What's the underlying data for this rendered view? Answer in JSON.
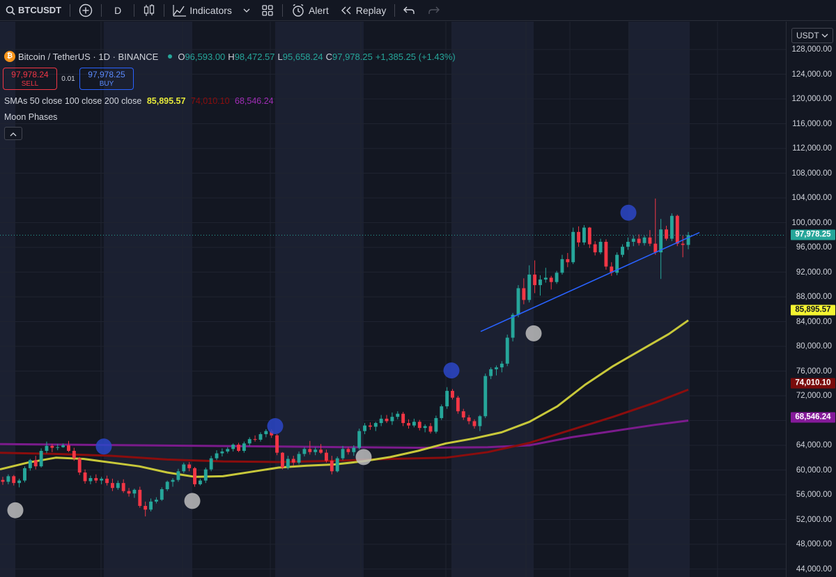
{
  "toolbar": {
    "symbol": "BTCUSDT",
    "interval": "D",
    "indicators_label": "Indicators",
    "alert_label": "Alert",
    "replay_label": "Replay"
  },
  "legend": {
    "title": "Bitcoin / TetherUS · 1D · BINANCE",
    "coin_glyph": "₿",
    "open_k": "O",
    "open_v": "96,593.00",
    "high_k": "H",
    "high_v": "98,472.57",
    "low_k": "L",
    "low_v": "95,658.24",
    "close_k": "C",
    "close_v": "97,978.25",
    "change": "+1,385.25 (+1.43%)"
  },
  "trade": {
    "sell_price": "97,978.24",
    "sell_label": "SELL",
    "spread": "0.01",
    "buy_price": "97,978.25",
    "buy_label": "BUY"
  },
  "indicators": {
    "sma_name": "SMAs 50 close 100 close 200 close",
    "sma50_value": "85,895.57",
    "sma100_value": "74,010.10",
    "sma200_value": "68,546.24",
    "moon_name": "Moon Phases"
  },
  "price_axis": {
    "currency": "USDT",
    "ticks": [
      "128,000.00",
      "124,000.00",
      "120,000.00",
      "116,000.00",
      "112,000.00",
      "108,000.00",
      "104,000.00",
      "100,000.00",
      "96,000.00",
      "92,000.00",
      "88,000.00",
      "84,000.00",
      "80,000.00",
      "76,000.00",
      "72,000.00",
      "64,000.00",
      "60,000.00",
      "56,000.00",
      "52,000.00",
      "48,000.00",
      "44,000.00"
    ],
    "last_price_tag": "97,978.25",
    "sma50_tag": "85,895.57",
    "sma100_tag": "74,010.10",
    "sma200_tag": "68,546.24"
  },
  "colors": {
    "background": "#131722",
    "up": "#26a69a",
    "down": "#f23645",
    "sma50": "#c8c83a",
    "sma100": "#8b0d0d",
    "sma200": "#7b1b8c",
    "trendline": "#2962ff",
    "full_moon": "#bdbdbd",
    "new_moon": "#2b46c8",
    "phase_shade": "#1b2031"
  },
  "icons": [
    "search-icon",
    "add-symbol-icon",
    "candles-icon",
    "indicators-icon",
    "templates-icon",
    "alert-icon",
    "replay-icon",
    "undo-icon",
    "redo-icon",
    "bitcoin-icon",
    "chevron-up-icon",
    "tradingview-logo"
  ],
  "chart_data": {
    "type": "candlestick",
    "symbol": "Bitcoin / TetherUS",
    "interval": "1D",
    "exchange": "BINANCE",
    "ylim": [
      44000,
      128000
    ],
    "candles": [
      [
        58400,
        58900,
        57600,
        58100
      ],
      [
        58100,
        59300,
        57700,
        59000
      ],
      [
        59000,
        59200,
        57500,
        57900
      ],
      [
        57900,
        58600,
        57200,
        58300
      ],
      [
        58300,
        60600,
        58000,
        60300
      ],
      [
        60300,
        61800,
        59900,
        61600
      ],
      [
        61600,
        62300,
        60100,
        60600
      ],
      [
        60600,
        63500,
        60400,
        63100
      ],
      [
        63100,
        64600,
        62700,
        63900
      ],
      [
        63900,
        64200,
        62900,
        63600
      ],
      [
        63600,
        64200,
        63200,
        63700
      ],
      [
        63700,
        64300,
        63600,
        64000
      ],
      [
        64000,
        64700,
        62900,
        63100
      ],
      [
        63100,
        63600,
        61500,
        61900
      ],
      [
        61900,
        62100,
        59200,
        59600
      ],
      [
        59600,
        60100,
        57800,
        58200
      ],
      [
        58200,
        59100,
        57700,
        58700
      ],
      [
        58700,
        59300,
        57900,
        58300
      ],
      [
        58300,
        58900,
        57700,
        58600
      ],
      [
        58600,
        59100,
        57500,
        57900
      ],
      [
        57900,
        58600,
        56600,
        57100
      ],
      [
        57100,
        58300,
        56800,
        57900
      ],
      [
        57900,
        58500,
        56300,
        56600
      ],
      [
        56600,
        57100,
        55700,
        56200
      ],
      [
        56200,
        57000,
        55500,
        56800
      ],
      [
        56800,
        57300,
        53900,
        54200
      ],
      [
        54200,
        54900,
        52500,
        53600
      ],
      [
        53600,
        55400,
        53300,
        54900
      ],
      [
        54900,
        55600,
        54600,
        55200
      ],
      [
        55200,
        57200,
        55000,
        56900
      ],
      [
        56900,
        58300,
        56600,
        58100
      ],
      [
        58100,
        58700,
        57300,
        58400
      ],
      [
        58400,
        60200,
        58100,
        59800
      ],
      [
        59800,
        61200,
        59500,
        60900
      ],
      [
        60900,
        61300,
        59800,
        60300
      ],
      [
        60300,
        60500,
        57300,
        57700
      ],
      [
        57700,
        58600,
        57500,
        58300
      ],
      [
        58300,
        60400,
        57900,
        60100
      ],
      [
        60100,
        62300,
        59800,
        61900
      ],
      [
        61900,
        63200,
        61600,
        62700
      ],
      [
        62700,
        63500,
        62200,
        63000
      ],
      [
        63000,
        63700,
        62700,
        63400
      ],
      [
        63400,
        64300,
        63000,
        64100
      ],
      [
        64100,
        64400,
        62900,
        63100
      ],
      [
        63100,
        64600,
        62800,
        64300
      ],
      [
        64300,
        65300,
        63900,
        65000
      ],
      [
        65000,
        65600,
        64600,
        64900
      ],
      [
        64900,
        66100,
        64600,
        65800
      ],
      [
        65800,
        66600,
        65300,
        66300
      ],
      [
        66300,
        66600,
        65200,
        65600
      ],
      [
        65600,
        65800,
        62400,
        62800
      ],
      [
        62800,
        62900,
        60100,
        60400
      ],
      [
        60400,
        62300,
        60100,
        61800
      ],
      [
        61800,
        62300,
        60700,
        61200
      ],
      [
        61200,
        63000,
        60900,
        62600
      ],
      [
        62600,
        63700,
        62200,
        63400
      ],
      [
        63400,
        64700,
        62500,
        62900
      ],
      [
        62900,
        63700,
        62400,
        63300
      ],
      [
        63300,
        64200,
        62600,
        62800
      ],
      [
        62800,
        63300,
        61200,
        61500
      ],
      [
        61500,
        62300,
        59300,
        59800
      ],
      [
        59800,
        62200,
        59600,
        61900
      ],
      [
        61900,
        63900,
        61600,
        63400
      ],
      [
        63400,
        63700,
        62500,
        62900
      ],
      [
        62900,
        64000,
        62300,
        63600
      ],
      [
        63600,
        66700,
        63300,
        66300
      ],
      [
        66300,
        67600,
        65800,
        67200
      ],
      [
        67200,
        67700,
        66500,
        67000
      ],
      [
        67000,
        67800,
        66300,
        67600
      ],
      [
        67600,
        68900,
        67100,
        68300
      ],
      [
        68300,
        68900,
        67600,
        67900
      ],
      [
        67900,
        69300,
        67300,
        68600
      ],
      [
        68600,
        69500,
        68200,
        69100
      ],
      [
        69100,
        69400,
        67100,
        67600
      ],
      [
        67600,
        68200,
        66700,
        67200
      ],
      [
        67200,
        68300,
        66900,
        67800
      ],
      [
        67800,
        68100,
        66400,
        66800
      ],
      [
        66800,
        67400,
        66100,
        67100
      ],
      [
        67100,
        67600,
        65900,
        66200
      ],
      [
        66200,
        68800,
        65900,
        68400
      ],
      [
        68400,
        70600,
        68100,
        70300
      ],
      [
        70300,
        73400,
        69900,
        72800
      ],
      [
        72800,
        73100,
        71400,
        71700
      ],
      [
        71700,
        72000,
        69100,
        69500
      ],
      [
        69500,
        69900,
        68100,
        68500
      ],
      [
        68500,
        68900,
        67400,
        67900
      ],
      [
        67900,
        68200,
        66700,
        67100
      ],
      [
        67100,
        68900,
        66300,
        68700
      ],
      [
        68700,
        75600,
        68400,
        75200
      ],
      [
        75200,
        76600,
        74700,
        76300
      ],
      [
        76300,
        76900,
        75300,
        76600
      ],
      [
        76600,
        77600,
        75800,
        77200
      ],
      [
        77200,
        81900,
        76800,
        81400
      ],
      [
        81400,
        85400,
        80800,
        85100
      ],
      [
        85100,
        89900,
        84700,
        89400
      ],
      [
        89400,
        91000,
        86800,
        87500
      ],
      [
        87500,
        93100,
        87100,
        91600
      ],
      [
        91600,
        93900,
        88600,
        89900
      ],
      [
        89900,
        91500,
        88200,
        90800
      ],
      [
        90800,
        92700,
        90300,
        91100
      ],
      [
        91100,
        91400,
        89200,
        90400
      ],
      [
        90400,
        92200,
        90100,
        91900
      ],
      [
        91900,
        94800,
        91600,
        94100
      ],
      [
        94100,
        95100,
        92800,
        93600
      ],
      [
        93600,
        99200,
        93300,
        98500
      ],
      [
        98500,
        99400,
        96100,
        96800
      ],
      [
        96800,
        99600,
        96400,
        99200
      ],
      [
        99200,
        99300,
        95900,
        96500
      ],
      [
        96500,
        97000,
        94700,
        95200
      ],
      [
        95200,
        97400,
        94900,
        96900
      ],
      [
        96900,
        97300,
        92400,
        92900
      ],
      [
        92900,
        93600,
        91400,
        91900
      ],
      [
        91900,
        95200,
        91500,
        94800
      ],
      [
        94800,
        96500,
        94400,
        96100
      ],
      [
        96100,
        97600,
        95600,
        96900
      ],
      [
        96900,
        97900,
        96200,
        97400
      ],
      [
        97400,
        98100,
        96300,
        96700
      ],
      [
        96700,
        97900,
        96300,
        97600
      ],
      [
        97600,
        98800,
        96200,
        96600
      ],
      [
        96600,
        103900,
        94800,
        95200
      ],
      [
        95200,
        100600,
        90900,
        98900
      ],
      [
        98900,
        99500,
        97100,
        97400
      ],
      [
        97400,
        101500,
        97000,
        101100
      ],
      [
        101100,
        101300,
        96200,
        96600
      ],
      [
        96600,
        97900,
        94400,
        96400
      ],
      [
        96400,
        98500,
        95700,
        97978.25
      ]
    ],
    "sma50": [
      [
        0,
        60100
      ],
      [
        40,
        61200
      ],
      [
        80,
        62000
      ],
      [
        120,
        61800
      ],
      [
        160,
        61200
      ],
      [
        200,
        60600
      ],
      [
        240,
        59600
      ],
      [
        280,
        58900
      ],
      [
        320,
        59000
      ],
      [
        360,
        59700
      ],
      [
        400,
        60400
      ],
      [
        440,
        60700
      ],
      [
        480,
        60900
      ],
      [
        520,
        61400
      ],
      [
        560,
        62100
      ],
      [
        600,
        63100
      ],
      [
        640,
        64300
      ],
      [
        680,
        65100
      ],
      [
        720,
        66100
      ],
      [
        760,
        67800
      ],
      [
        800,
        70300
      ],
      [
        840,
        73800
      ],
      [
        880,
        76800
      ],
      [
        920,
        79400
      ],
      [
        960,
        82000
      ],
      [
        988,
        84200
      ]
    ],
    "sma100": [
      [
        0,
        62800
      ],
      [
        80,
        62600
      ],
      [
        160,
        62300
      ],
      [
        240,
        61700
      ],
      [
        320,
        61400
      ],
      [
        400,
        61300
      ],
      [
        480,
        61500
      ],
      [
        560,
        61800
      ],
      [
        640,
        62000
      ],
      [
        700,
        62900
      ],
      [
        760,
        64400
      ],
      [
        820,
        66500
      ],
      [
        880,
        68600
      ],
      [
        940,
        70900
      ],
      [
        988,
        73000
      ]
    ],
    "sma200": [
      [
        0,
        64200
      ],
      [
        100,
        64100
      ],
      [
        200,
        64000
      ],
      [
        300,
        63900
      ],
      [
        400,
        63800
      ],
      [
        500,
        63700
      ],
      [
        600,
        63600
      ],
      [
        700,
        63700
      ],
      [
        760,
        64000
      ],
      [
        820,
        65300
      ],
      [
        880,
        66300
      ],
      [
        940,
        67300
      ],
      [
        988,
        68000
      ]
    ],
    "trendline": [
      [
        690,
        82400
      ],
      [
        1004,
        98400
      ]
    ],
    "moon_phases": [
      {
        "x": 22,
        "price": 53500,
        "phase": "full"
      },
      {
        "x": 149,
        "price": 63800,
        "phase": "new"
      },
      {
        "x": 276,
        "price": 55000,
        "phase": "full"
      },
      {
        "x": 395,
        "price": 67100,
        "phase": "new"
      },
      {
        "x": 522,
        "price": 62100,
        "phase": "full"
      },
      {
        "x": 648,
        "price": 76100,
        "phase": "new"
      },
      {
        "x": 766,
        "price": 82100,
        "phase": "full"
      },
      {
        "x": 902,
        "price": 101600,
        "phase": "new"
      }
    ]
  }
}
